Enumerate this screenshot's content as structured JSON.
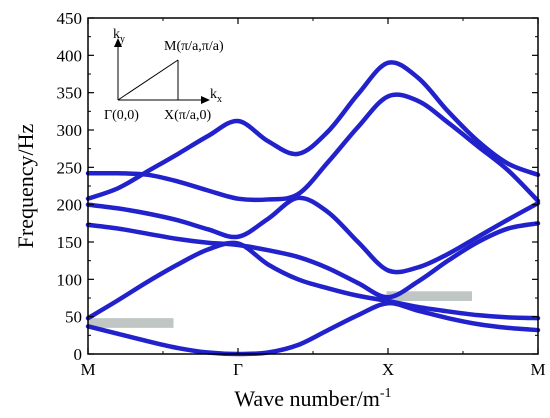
{
  "chart_data": {
    "type": "line",
    "title": "",
    "xlabel": "Wave number/m",
    "xlabel_superscript": "-1",
    "ylabel": "Frequency/Hz",
    "xlim": [
      0,
      3
    ],
    "ylim": [
      0,
      450
    ],
    "x_ticks": [
      0,
      1,
      2,
      3
    ],
    "x_tick_labels": [
      "M",
      "Γ",
      "X",
      "M"
    ],
    "y_ticks": [
      0,
      50,
      100,
      150,
      200,
      250,
      300,
      350,
      400,
      450
    ],
    "y_tick_labels": [
      "0",
      "50",
      "100",
      "150",
      "200",
      "250",
      "300",
      "350",
      "400",
      "450"
    ],
    "line_color": "#2222cc",
    "band_gap_color": "#bfc6c3",
    "series": [
      {
        "x": [
          0,
          0.2,
          0.4,
          0.6,
          0.8,
          1.0,
          1.2,
          1.4,
          1.6,
          1.8,
          2.0,
          2.2,
          2.4,
          2.6,
          2.8,
          3.0
        ],
        "values": [
          37,
          27,
          17,
          8,
          2,
          0,
          2,
          12,
          32,
          52,
          68,
          58,
          48,
          40,
          35,
          32
        ]
      },
      {
        "x": [
          0,
          0.2,
          0.4,
          0.6,
          0.8,
          1.0,
          1.2,
          1.4,
          1.6,
          1.8,
          2.0,
          2.2,
          2.4,
          2.6,
          2.8,
          3.0
        ],
        "values": [
          48,
          72,
          97,
          120,
          140,
          148,
          120,
          100,
          88,
          78,
          71,
          63,
          57,
          52,
          49,
          48
        ]
      },
      {
        "x": [
          0,
          0.2,
          0.4,
          0.6,
          0.8,
          1.0,
          1.2,
          1.4,
          1.6,
          1.8,
          2.0,
          2.2,
          2.4,
          2.6,
          2.8,
          3.0
        ],
        "values": [
          173,
          168,
          161,
          154,
          149,
          146,
          139,
          130,
          115,
          95,
          76,
          97,
          125,
          150,
          168,
          175
        ]
      },
      {
        "x": [
          0,
          0.2,
          0.4,
          0.6,
          0.8,
          1.0,
          1.2,
          1.4,
          1.6,
          1.8,
          2.0,
          2.2,
          2.4,
          2.6,
          2.8,
          3.0
        ],
        "values": [
          200,
          195,
          188,
          179,
          167,
          157,
          181,
          209,
          190,
          150,
          112,
          116,
          134,
          157,
          180,
          202
        ]
      },
      {
        "x": [
          0,
          0.2,
          0.4,
          0.6,
          0.8,
          1.0,
          1.2,
          1.4,
          1.6,
          1.8,
          2.0,
          2.2,
          2.4,
          2.6,
          2.8,
          3.0
        ],
        "values": [
          242,
          242,
          240,
          231,
          219,
          208,
          207,
          214,
          257,
          304,
          345,
          339,
          310,
          278,
          246,
          205
        ]
      },
      {
        "x": [
          0,
          0.2,
          0.4,
          0.6,
          0.8,
          1.0,
          1.2,
          1.4,
          1.6,
          1.8,
          2.0,
          2.2,
          2.4,
          2.6,
          2.8,
          3.0
        ],
        "values": [
          208,
          222,
          245,
          268,
          292,
          312,
          285,
          268,
          298,
          348,
          390,
          370,
          325,
          285,
          255,
          240
        ]
      }
    ],
    "band_gaps": [
      {
        "x": [
          0,
          0.57
        ],
        "y": [
          35,
          48
        ]
      },
      {
        "x": [
          1.99,
          2.56
        ],
        "y": [
          71,
          84
        ]
      }
    ],
    "inset": {
      "ky_label": "k",
      "ky_sub": "y",
      "kx_label": "k",
      "kx_sub": "x",
      "gamma_label": "Γ(0,0)",
      "x_point_label": "X(π/a,0)",
      "m_point_label": "M(π/a,π/a)"
    }
  }
}
